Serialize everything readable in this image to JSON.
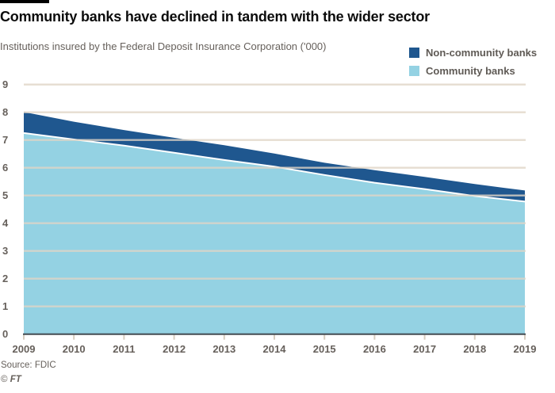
{
  "header": {
    "title": "Community banks have declined in tandem with the wider sector",
    "subtitle": "Institutions insured by the Federal Deposit Insurance Corporation ('000)"
  },
  "legend": {
    "items": [
      {
        "label": "Non-community banks",
        "color": "#1f578f"
      },
      {
        "label": "Community banks",
        "color": "#94d2e3"
      }
    ]
  },
  "footer": {
    "source": "Source: FDIC",
    "copyright": "©",
    "brand": "FT"
  },
  "colors": {
    "dark_blue": "#1f578f",
    "light_blue": "#94d2e3",
    "grid": "#e0d5c6",
    "baseline": "#434b52",
    "tick": "#d8cec0",
    "separator": "#ffffff",
    "label_text": "#66605b",
    "top_rule": "#000000"
  },
  "chart_data": {
    "type": "area",
    "stacked": true,
    "title": "Community banks have declined in tandem with the wider sector",
    "subtitle": "Institutions insured by the Federal Deposit Insurance Corporation ('000)",
    "x": [
      2009,
      2010,
      2011,
      2012,
      2013,
      2014,
      2015,
      2016,
      2017,
      2018,
      2019
    ],
    "series": [
      {
        "name": "Community banks",
        "color": "#94d2e3",
        "values": [
          7.25,
          7.02,
          6.8,
          6.54,
          6.28,
          6.04,
          5.74,
          5.46,
          5.23,
          4.98,
          4.78
        ]
      },
      {
        "name": "Non-community banks",
        "color": "#1f578f",
        "values": [
          0.76,
          0.64,
          0.56,
          0.54,
          0.53,
          0.47,
          0.44,
          0.45,
          0.44,
          0.43,
          0.4
        ]
      }
    ],
    "totals": [
      8.01,
      7.66,
      7.36,
      7.08,
      6.81,
      6.51,
      6.18,
      5.91,
      5.67,
      5.41,
      5.18
    ],
    "ylim": [
      0,
      9
    ],
    "yticks": [
      0,
      1,
      2,
      3,
      4,
      5,
      6,
      7,
      8,
      9
    ],
    "xticks": [
      2009,
      2010,
      2011,
      2012,
      2013,
      2014,
      2015,
      2016,
      2017,
      2018,
      2019
    ],
    "grid": true,
    "legend_position": "top-right",
    "source": "Source: FDIC",
    "credit": "© FT"
  }
}
